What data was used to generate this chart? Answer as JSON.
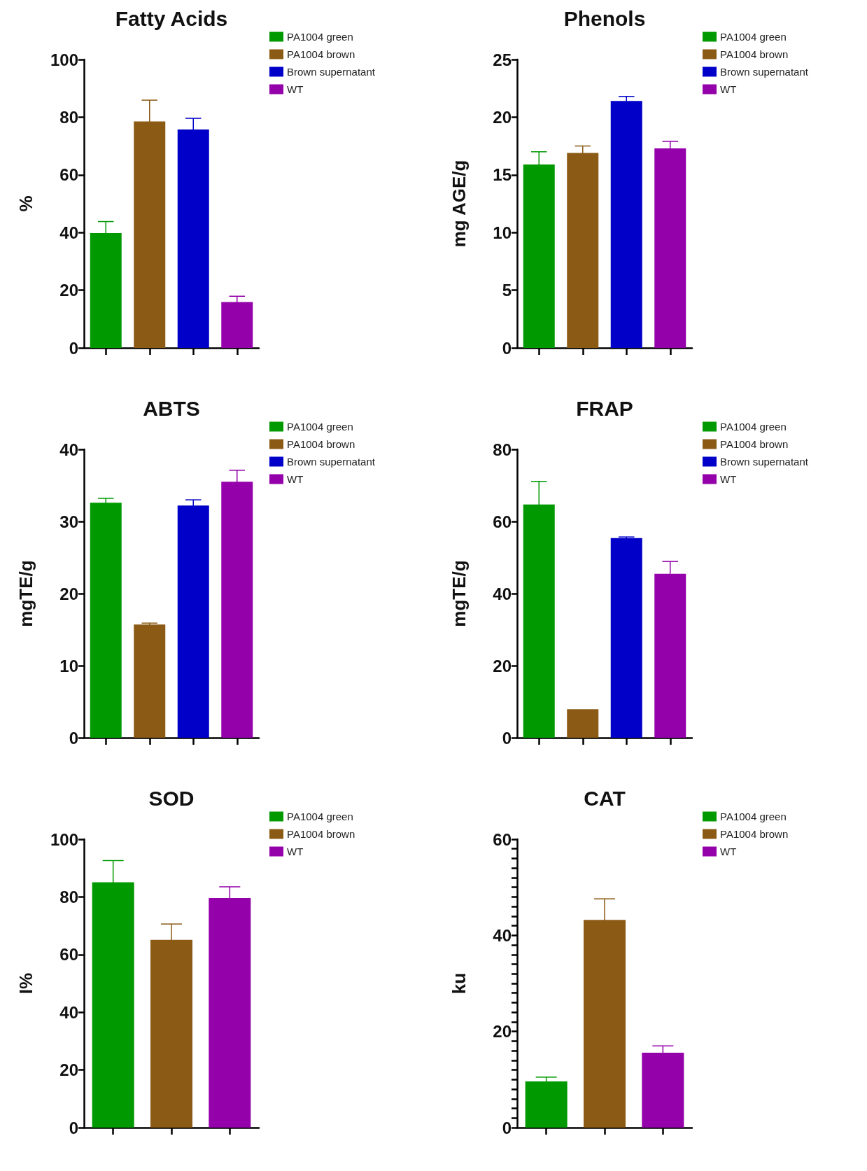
{
  "chart_data": [
    {
      "type": "bar",
      "title": "Fatty Acids",
      "ylabel": "%",
      "categories": [
        null,
        null,
        null,
        null
      ],
      "ylim": [
        0,
        100
      ],
      "yticks": [
        0,
        20,
        40,
        60,
        80,
        100
      ],
      "legend": "top right",
      "tick_labels": "y",
      "grid": false,
      "series": [
        {
          "name": "PA1004 green",
          "color": "#009900",
          "values": [
            39.8,
            null,
            null,
            null
          ],
          "errors": [
            4.0,
            null,
            null,
            null
          ]
        },
        {
          "name": "PA1004 brown",
          "color": "#8b5a14",
          "values": [
            null,
            78.5,
            null,
            null
          ],
          "errors": [
            null,
            7.4,
            null,
            null
          ]
        },
        {
          "name": "Brown supernatant",
          "color": "#0000c8",
          "values": [
            null,
            null,
            75.7,
            null
          ],
          "errors": [
            null,
            null,
            3.9,
            null
          ]
        },
        {
          "name": "WT",
          "color": "#9400aa",
          "values": [
            null,
            null,
            null,
            15.9
          ],
          "errors": [
            null,
            null,
            null,
            2.0
          ]
        }
      ]
    },
    {
      "type": "bar",
      "title": "Phenols",
      "ylabel": "mg AGE/g",
      "categories": [
        null,
        null,
        null,
        null
      ],
      "ylim": [
        0,
        25
      ],
      "yticks": [
        0,
        5,
        10,
        15,
        20,
        25
      ],
      "legend": "top right",
      "tick_labels": "y",
      "grid": false,
      "series": [
        {
          "name": "PA1004 green",
          "color": "#009900",
          "values": [
            15.9,
            null,
            null,
            null
          ],
          "errors": [
            1.1,
            null,
            null,
            null
          ]
        },
        {
          "name": "PA1004 brown",
          "color": "#8b5a14",
          "values": [
            null,
            16.9,
            null,
            null
          ],
          "errors": [
            null,
            0.6,
            null,
            null
          ]
        },
        {
          "name": "Brown supernatant",
          "color": "#0000c8",
          "values": [
            null,
            null,
            21.4,
            null
          ],
          "errors": [
            null,
            null,
            0.4,
            null
          ]
        },
        {
          "name": "WT",
          "color": "#9400aa",
          "values": [
            null,
            null,
            null,
            17.3
          ],
          "errors": [
            null,
            null,
            null,
            0.6
          ]
        }
      ]
    },
    {
      "type": "bar",
      "title": "ABTS",
      "ylabel": "mgTE/g",
      "categories": [
        null,
        null,
        null,
        null
      ],
      "ylim": [
        0,
        40
      ],
      "yticks": [
        0,
        10,
        20,
        30,
        40
      ],
      "legend": "top right",
      "tick_labels": "y",
      "grid": false,
      "series": [
        {
          "name": "PA1004 green",
          "color": "#009900",
          "values": [
            32.6,
            null,
            null,
            null
          ],
          "errors": [
            0.6,
            null,
            null,
            null
          ]
        },
        {
          "name": "PA1004 brown",
          "color": "#8b5a14",
          "values": [
            null,
            15.7,
            null,
            null
          ],
          "errors": [
            null,
            0.2,
            null,
            null
          ]
        },
        {
          "name": "Brown supernatant",
          "color": "#0000c8",
          "values": [
            null,
            null,
            32.2,
            null
          ],
          "errors": [
            null,
            null,
            0.8,
            null
          ]
        },
        {
          "name": "WT",
          "color": "#9400aa",
          "values": [
            null,
            null,
            null,
            35.5
          ],
          "errors": [
            null,
            null,
            null,
            1.6
          ]
        }
      ]
    },
    {
      "type": "bar",
      "title": "FRAP",
      "ylabel": "mgTE/g",
      "categories": [
        null,
        null,
        null,
        null
      ],
      "ylim": [
        0,
        80
      ],
      "yticks": [
        0,
        20,
        40,
        60,
        80
      ],
      "legend": "top right",
      "tick_labels": "y",
      "grid": false,
      "series": [
        {
          "name": "PA1004 green",
          "color": "#009900",
          "values": [
            64.7,
            null,
            null,
            null
          ],
          "errors": [
            6.4,
            null,
            null,
            null
          ]
        },
        {
          "name": "PA1004 brown",
          "color": "#8b5a14",
          "values": [
            null,
            7.9,
            null,
            null
          ]
        },
        {
          "name": "Brown supernatant",
          "color": "#0000c8",
          "values": [
            null,
            null,
            55.4,
            null
          ],
          "errors": [
            null,
            null,
            0.3,
            null
          ]
        },
        {
          "name": "WT",
          "color": "#9400aa",
          "values": [
            null,
            null,
            null,
            45.5
          ],
          "errors": [
            null,
            null,
            null,
            3.4
          ]
        }
      ]
    },
    {
      "type": "bar",
      "title": "SOD",
      "ylabel": "I%",
      "categories": [
        null,
        null,
        null
      ],
      "ylim": [
        0,
        100
      ],
      "yticks": [
        0,
        20,
        40,
        60,
        80,
        100
      ],
      "legend": "top right",
      "tick_labels": "y",
      "grid": false,
      "series": [
        {
          "name": "PA1004 green",
          "color": "#009900",
          "values": [
            85.1,
            null,
            null
          ],
          "errors": [
            7.5,
            null,
            null
          ]
        },
        {
          "name": "PA1004 brown",
          "color": "#8b5a14",
          "values": [
            null,
            65.1,
            null
          ],
          "errors": [
            null,
            5.5,
            null
          ]
        },
        {
          "name": "WT",
          "color": "#9400aa",
          "values": [
            null,
            null,
            79.6
          ],
          "errors": [
            null,
            null,
            3.9
          ]
        }
      ]
    },
    {
      "type": "bar",
      "title": "CAT",
      "ylabel": "ku",
      "categories": [
        null,
        null,
        null
      ],
      "ylim": [
        0,
        60
      ],
      "yticks": [
        0,
        {
          "value": 2,
          "label": null
        },
        {
          "value": 4,
          "label": null
        },
        {
          "value": 6,
          "label": null
        },
        {
          "value": 8,
          "label": null
        },
        {
          "value": 10,
          "label": null
        },
        {
          "value": 12,
          "label": null
        },
        {
          "value": 14,
          "label": null
        },
        {
          "value": 16,
          "label": null
        },
        {
          "value": 18,
          "label": null
        },
        20,
        {
          "value": 22,
          "label": null
        },
        {
          "value": 24,
          "label": null
        },
        {
          "value": 26,
          "label": null
        },
        {
          "value": 28,
          "label": null
        },
        {
          "value": 30,
          "label": null
        },
        {
          "value": 32,
          "label": null
        },
        {
          "value": 34,
          "label": null
        },
        {
          "value": 36,
          "label": null
        },
        {
          "value": 38,
          "label": null
        },
        40,
        {
          "value": 42,
          "label": null
        },
        {
          "value": 44,
          "label": null
        },
        {
          "value": 46,
          "label": null
        },
        {
          "value": 48,
          "label": null
        },
        {
          "value": 50,
          "label": null
        },
        {
          "value": 52,
          "label": null
        },
        {
          "value": 54,
          "label": null
        },
        {
          "value": 56,
          "label": null
        },
        {
          "value": 58,
          "label": null
        },
        60
      ],
      "legend": "top right",
      "tick_labels": "y",
      "grid": false,
      "series": [
        {
          "name": "PA1004 green",
          "color": "#009900",
          "values": [
            9.6,
            null,
            null
          ],
          "errors": [
            0.9,
            null,
            null
          ]
        },
        {
          "name": "PA1004 brown",
          "color": "#8b5a14",
          "values": [
            null,
            43.2,
            null
          ],
          "errors": [
            null,
            4.4,
            null
          ]
        },
        {
          "name": "WT",
          "color": "#9400aa",
          "values": [
            null,
            null,
            15.6
          ],
          "errors": [
            null,
            null,
            1.4
          ]
        }
      ]
    }
  ]
}
